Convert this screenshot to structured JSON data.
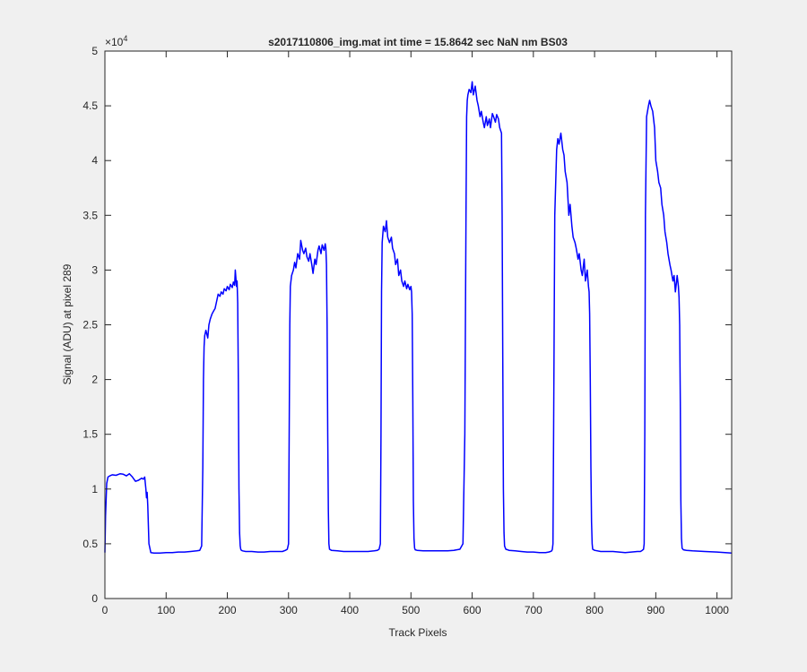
{
  "chart_data": {
    "type": "line",
    "title": "s2017110806_img.mat int time = 15.8642 sec  NaN nm BS03",
    "xlabel": "Track Pixels",
    "ylabel": "Signal (ADU) at pixel 289",
    "exponent_label": "×10",
    "exponent_power": "4",
    "xlim": [
      0,
      1024
    ],
    "ylim": [
      0,
      50000
    ],
    "xticks": [
      0,
      100,
      200,
      300,
      400,
      500,
      600,
      700,
      800,
      900,
      1000
    ],
    "xtick_labels": [
      "0",
      "100",
      "200",
      "300",
      "400",
      "500",
      "600",
      "700",
      "800",
      "900",
      "1000"
    ],
    "yticks": [
      0,
      5000,
      10000,
      15000,
      20000,
      25000,
      30000,
      35000,
      40000,
      45000,
      50000
    ],
    "ytick_labels": [
      "0",
      "0.5",
      "1",
      "1.5",
      "2",
      "2.5",
      "3",
      "3.5",
      "4",
      "4.5",
      "5"
    ],
    "grid": false,
    "legend": "none",
    "series": [
      {
        "color": "#0000ff",
        "x": [
          0,
          1,
          3,
          5,
          8,
          12,
          18,
          25,
          30,
          35,
          40,
          45,
          50,
          55,
          60,
          63,
          65,
          66,
          67,
          68,
          69,
          70,
          72,
          75,
          80,
          90,
          100,
          110,
          120,
          130,
          140,
          150,
          155,
          158,
          160,
          161,
          162,
          163,
          165,
          168,
          170,
          172,
          175,
          178,
          180,
          182,
          185,
          188,
          190,
          193,
          195,
          198,
          200,
          203,
          205,
          208,
          210,
          212,
          213,
          215,
          216,
          217,
          218,
          219,
          220,
          221,
          222,
          223,
          225,
          230,
          240,
          250,
          260,
          270,
          280,
          290,
          295,
          298,
          300,
          301,
          302,
          303,
          305,
          308,
          310,
          312,
          315,
          318,
          320,
          323,
          325,
          328,
          330,
          333,
          335,
          338,
          340,
          343,
          345,
          348,
          350,
          353,
          355,
          358,
          360,
          361,
          362,
          363,
          364,
          365,
          366,
          367,
          370,
          380,
          390,
          400,
          410,
          420,
          430,
          440,
          445,
          448,
          450,
          451,
          452,
          453,
          455,
          458,
          460,
          462,
          465,
          468,
          470,
          473,
          475,
          478,
          480,
          483,
          485,
          488,
          490,
          493,
          495,
          498,
          500,
          501,
          502,
          503,
          504,
          505,
          506,
          507,
          510,
          520,
          530,
          540,
          550,
          560,
          570,
          580,
          585,
          588,
          590,
          591,
          592,
          593,
          595,
          598,
          600,
          602,
          605,
          608,
          610,
          613,
          615,
          618,
          620,
          623,
          625,
          628,
          630,
          633,
          635,
          638,
          640,
          643,
          645,
          648,
          649,
          650,
          651,
          652,
          653,
          655,
          658,
          660,
          670,
          680,
          690,
          700,
          710,
          720,
          725,
          728,
          730,
          731,
          732,
          733,
          735,
          738,
          740,
          742,
          745,
          748,
          750,
          752,
          755,
          758,
          760,
          763,
          765,
          768,
          770,
          773,
          775,
          778,
          780,
          783,
          785,
          788,
          790,
          791,
          792,
          793,
          794,
          795,
          796,
          797,
          800,
          810,
          820,
          830,
          840,
          850,
          860,
          870,
          875,
          878,
          880,
          881,
          882,
          883,
          885,
          888,
          890,
          892,
          895,
          898,
          900,
          903,
          905,
          908,
          910,
          913,
          915,
          918,
          920,
          923,
          925,
          928,
          930,
          932,
          933,
          935,
          937,
          938,
          939,
          940,
          941,
          942,
          943,
          945,
          950,
          960,
          980,
          1000,
          1024
        ],
        "y": [
          4200,
          7500,
          10500,
          11100,
          11200,
          11300,
          11250,
          11400,
          11350,
          11200,
          11400,
          11100,
          10700,
          10800,
          11000,
          10900,
          11100,
          10500,
          10000,
          9200,
          9700,
          8500,
          5000,
          4200,
          4150,
          4150,
          4200,
          4200,
          4250,
          4250,
          4300,
          4350,
          4400,
          4800,
          12000,
          20000,
          23000,
          24000,
          24500,
          23800,
          25000,
          25500,
          26000,
          26300,
          26500,
          27000,
          27800,
          27600,
          28000,
          27800,
          28300,
          28100,
          28500,
          28200,
          28700,
          28400,
          28900,
          28600,
          30000,
          28500,
          29000,
          27000,
          20000,
          10000,
          6000,
          4800,
          4500,
          4400,
          4350,
          4300,
          4300,
          4250,
          4250,
          4300,
          4300,
          4300,
          4400,
          4500,
          5000,
          15000,
          25000,
          28500,
          29500,
          30000,
          30700,
          30200,
          31500,
          31000,
          32700,
          31800,
          31500,
          32000,
          31200,
          30800,
          31500,
          30500,
          29700,
          31000,
          30500,
          31800,
          32200,
          31500,
          32300,
          31800,
          32400,
          32000,
          30500,
          25000,
          15000,
          8000,
          5000,
          4500,
          4400,
          4350,
          4300,
          4300,
          4300,
          4300,
          4300,
          4350,
          4400,
          4500,
          5000,
          15000,
          28000,
          32500,
          34000,
          33500,
          34500,
          33000,
          32500,
          33000,
          32000,
          31500,
          30500,
          31000,
          29500,
          30000,
          29000,
          28500,
          29000,
          28300,
          28700,
          28200,
          28500,
          28000,
          26000,
          18000,
          9000,
          5500,
          4600,
          4450,
          4400,
          4350,
          4350,
          4350,
          4350,
          4350,
          4400,
          4500,
          5000,
          15000,
          35000,
          44000,
          45500,
          46000,
          46500,
          46200,
          47200,
          46000,
          46800,
          45500,
          45000,
          44000,
          44500,
          43500,
          43000,
          44000,
          43200,
          43800,
          43000,
          44300,
          44000,
          43500,
          44200,
          43800,
          43000,
          42500,
          35000,
          22000,
          10000,
          6000,
          4800,
          4500,
          4450,
          4400,
          4350,
          4300,
          4250,
          4250,
          4200,
          4200,
          4250,
          4300,
          4350,
          4500,
          5000,
          15000,
          35000,
          41000,
          42000,
          41500,
          42500,
          41000,
          40500,
          39000,
          38000,
          35000,
          36000,
          34000,
          33000,
          32500,
          32000,
          31000,
          31500,
          30000,
          29500,
          31000,
          29000,
          30000,
          28500,
          28000,
          26000,
          20000,
          12000,
          7000,
          5000,
          4500,
          4400,
          4300,
          4300,
          4300,
          4250,
          4200,
          4250,
          4300,
          4300,
          4400,
          4500,
          5000,
          15000,
          35000,
          44000,
          45000,
          45500,
          45000,
          44500,
          43000,
          40000,
          39000,
          38000,
          37500,
          36000,
          35000,
          33500,
          32500,
          31500,
          30500,
          30000,
          29000,
          29500,
          28000,
          28500,
          29500,
          28500,
          27500,
          25000,
          18000,
          9000,
          5500,
          4600,
          4450,
          4400,
          4350,
          4300,
          4250,
          4150
        ]
      }
    ]
  }
}
